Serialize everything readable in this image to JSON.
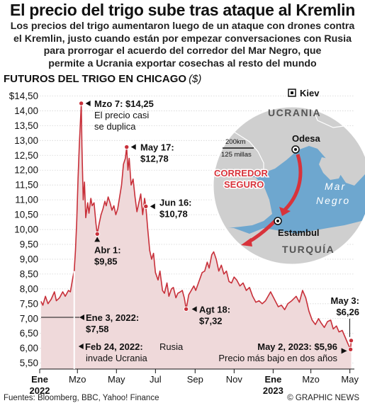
{
  "header": {
    "title": "El precio del trigo sube tras ataque al Kremlin",
    "subtitle_lines": [
      "Los precios del trigo aumentaron luego de un ataque con drones contra",
      "el Kremlin, justo cuando están por empezar conversaciones con Rusia",
      "para prorrogar el acuerdo del corredor del Mar Negro, que",
      "permite a Ucrania exportar cosechas al resto del mundo"
    ]
  },
  "chart_title": "FUTUROS DEL TRIGO EN CHICAGO",
  "chart_unit": "($)",
  "chart_data": {
    "type": "area",
    "title": "FUTUROS DEL TRIGO EN CHICAGO",
    "ylabel": "($)",
    "ylim": [
      5.3,
      14.75
    ],
    "y_ticks": [
      "$14,50",
      "14,00",
      "13,50",
      "13,00",
      "12,50",
      "12,00",
      "11,50",
      "11,00",
      "10,50",
      "10,00",
      "9,50",
      "9,00",
      "8,50",
      "8,00",
      "7,50",
      "7,00",
      "6,50",
      "6,00",
      "5,50"
    ],
    "y_tick_values": [
      14.5,
      14,
      13.5,
      13,
      12.5,
      12,
      11.5,
      11,
      10.5,
      10,
      9.5,
      9,
      8.5,
      8,
      7.5,
      7,
      6.5,
      6,
      5.5
    ],
    "x_ticks": [
      {
        "label": "Ene",
        "sub": "2022",
        "date": "2022-01-01"
      },
      {
        "label": "Mzo",
        "sub": "",
        "date": "2022-03-01"
      },
      {
        "label": "May",
        "sub": "",
        "date": "2022-05-01"
      },
      {
        "label": "Jul",
        "sub": "",
        "date": "2022-07-01"
      },
      {
        "label": "Sep",
        "sub": "",
        "date": "2022-09-01"
      },
      {
        "label": "Nov",
        "sub": "",
        "date": "2022-11-01"
      },
      {
        "label": "Ene",
        "sub": "2023",
        "date": "2023-01-01"
      },
      {
        "label": "Mzo",
        "sub": "",
        "date": "2023-03-01"
      },
      {
        "label": "May",
        "sub": "",
        "date": "2023-05-01"
      }
    ],
    "grid": true,
    "color": "#c8303a",
    "fill": "#efd9da",
    "series": [
      {
        "points": [
          [
            "2022-01-03",
            7.58
          ],
          [
            "2022-01-06",
            7.45
          ],
          [
            "2022-01-10",
            7.75
          ],
          [
            "2022-01-14",
            7.5
          ],
          [
            "2022-01-19",
            7.65
          ],
          [
            "2022-01-24",
            7.9
          ],
          [
            "2022-01-27",
            7.6
          ],
          [
            "2022-02-01",
            7.7
          ],
          [
            "2022-02-06",
            7.9
          ],
          [
            "2022-02-10",
            7.75
          ],
          [
            "2022-02-15",
            7.95
          ],
          [
            "2022-02-18",
            7.9
          ],
          [
            "2022-02-22",
            8.4
          ],
          [
            "2022-02-24",
            8.6
          ],
          [
            "2022-02-26",
            9.3
          ],
          [
            "2022-02-28",
            10.3
          ],
          [
            "2022-03-02",
            11.7
          ],
          [
            "2022-03-04",
            12.9
          ],
          [
            "2022-03-07",
            14.25
          ],
          [
            "2022-03-08",
            12.8
          ],
          [
            "2022-03-10",
            11.0
          ],
          [
            "2022-03-12",
            11.6
          ],
          [
            "2022-03-14",
            10.4
          ],
          [
            "2022-03-17",
            10.9
          ],
          [
            "2022-03-19",
            10.55
          ],
          [
            "2022-03-22",
            11.05
          ],
          [
            "2022-03-24",
            10.8
          ],
          [
            "2022-03-27",
            10.9
          ],
          [
            "2022-03-30",
            10.2
          ],
          [
            "2022-04-01",
            9.85
          ],
          [
            "2022-04-04",
            10.2
          ],
          [
            "2022-04-07",
            10.5
          ],
          [
            "2022-04-10",
            10.7
          ],
          [
            "2022-04-13",
            10.95
          ],
          [
            "2022-04-15",
            10.8
          ],
          [
            "2022-04-18",
            11.1
          ],
          [
            "2022-04-21",
            10.9
          ],
          [
            "2022-04-24",
            10.65
          ],
          [
            "2022-04-27",
            10.8
          ],
          [
            "2022-04-30",
            10.5
          ],
          [
            "2022-05-03",
            10.7
          ],
          [
            "2022-05-06",
            11.1
          ],
          [
            "2022-05-09",
            11.5
          ],
          [
            "2022-05-12",
            12.2
          ],
          [
            "2022-05-15",
            12.4
          ],
          [
            "2022-05-17",
            12.78
          ],
          [
            "2022-05-19",
            12.0
          ],
          [
            "2022-05-21",
            12.4
          ],
          [
            "2022-05-24",
            11.5
          ],
          [
            "2022-05-27",
            11.7
          ],
          [
            "2022-05-30",
            11.1
          ],
          [
            "2022-06-02",
            10.6
          ],
          [
            "2022-06-05",
            10.9
          ],
          [
            "2022-06-08",
            11.2
          ],
          [
            "2022-06-11",
            10.5
          ],
          [
            "2022-06-14",
            11.05
          ],
          [
            "2022-06-16",
            10.78
          ],
          [
            "2022-06-19",
            10.0
          ],
          [
            "2022-06-22",
            9.3
          ],
          [
            "2022-06-25",
            9.0
          ],
          [
            "2022-06-28",
            9.2
          ],
          [
            "2022-07-01",
            8.55
          ],
          [
            "2022-07-05",
            8.3
          ],
          [
            "2022-07-08",
            8.6
          ],
          [
            "2022-07-12",
            7.95
          ],
          [
            "2022-07-15",
            7.85
          ],
          [
            "2022-07-19",
            8.2
          ],
          [
            "2022-07-22",
            7.75
          ],
          [
            "2022-07-26",
            8.0
          ],
          [
            "2022-07-29",
            8.05
          ],
          [
            "2022-08-02",
            7.7
          ],
          [
            "2022-08-05",
            7.85
          ],
          [
            "2022-08-09",
            7.9
          ],
          [
            "2022-08-12",
            7.95
          ],
          [
            "2022-08-15",
            7.7
          ],
          [
            "2022-08-18",
            7.32
          ],
          [
            "2022-08-22",
            7.8
          ],
          [
            "2022-08-26",
            7.95
          ],
          [
            "2022-08-30",
            8.1
          ],
          [
            "2022-09-02",
            7.95
          ],
          [
            "2022-09-07",
            8.25
          ],
          [
            "2022-09-12",
            8.55
          ],
          [
            "2022-09-16",
            8.6
          ],
          [
            "2022-09-20",
            8.9
          ],
          [
            "2022-09-23",
            8.7
          ],
          [
            "2022-09-27",
            9.15
          ],
          [
            "2022-09-30",
            9.25
          ],
          [
            "2022-10-04",
            9.0
          ],
          [
            "2022-10-08",
            8.6
          ],
          [
            "2022-10-12",
            8.8
          ],
          [
            "2022-10-16",
            8.5
          ],
          [
            "2022-10-20",
            8.6
          ],
          [
            "2022-10-24",
            8.25
          ],
          [
            "2022-10-28",
            8.2
          ],
          [
            "2022-11-01",
            8.4
          ],
          [
            "2022-11-05",
            8.3
          ],
          [
            "2022-11-10",
            8.1
          ],
          [
            "2022-11-15",
            8.2
          ],
          [
            "2022-11-20",
            7.95
          ],
          [
            "2022-11-25",
            8.05
          ],
          [
            "2022-11-30",
            7.75
          ],
          [
            "2022-12-05",
            7.55
          ],
          [
            "2022-12-10",
            7.6
          ],
          [
            "2022-12-15",
            7.5
          ],
          [
            "2022-12-20",
            7.6
          ],
          [
            "2022-12-28",
            7.9
          ],
          [
            "2023-01-03",
            7.65
          ],
          [
            "2023-01-09",
            7.4
          ],
          [
            "2023-01-14",
            7.45
          ],
          [
            "2023-01-19",
            7.3
          ],
          [
            "2023-01-24",
            7.5
          ],
          [
            "2023-01-30",
            7.6
          ],
          [
            "2023-02-06",
            7.75
          ],
          [
            "2023-02-11",
            7.55
          ],
          [
            "2023-02-16",
            7.95
          ],
          [
            "2023-02-21",
            7.7
          ],
          [
            "2023-02-26",
            7.25
          ],
          [
            "2023-03-03",
            6.95
          ],
          [
            "2023-03-08",
            6.8
          ],
          [
            "2023-03-13",
            7.0
          ],
          [
            "2023-03-17",
            6.85
          ],
          [
            "2023-03-22",
            6.7
          ],
          [
            "2023-03-27",
            6.9
          ],
          [
            "2023-04-01",
            6.95
          ],
          [
            "2023-04-05",
            6.65
          ],
          [
            "2023-04-10",
            6.75
          ],
          [
            "2023-04-14",
            6.55
          ],
          [
            "2023-04-19",
            6.6
          ],
          [
            "2023-04-24",
            6.35
          ],
          [
            "2023-04-28",
            6.15
          ],
          [
            "2023-05-02",
            5.96
          ],
          [
            "2023-05-03",
            6.26
          ]
        ]
      }
    ],
    "annotations": [
      {
        "key": "mzo7",
        "date": "2022-03-07",
        "value": 14.25,
        "bold": "Mzo 7: $14,25",
        "text": [
          "El precio casi",
          "se duplica"
        ]
      },
      {
        "key": "may17",
        "date": "2022-05-17",
        "value": 12.78,
        "bold": "May 17:",
        "bold2": "$12,78"
      },
      {
        "key": "jun16",
        "date": "2022-06-16",
        "value": 10.78,
        "bold": "Jun 16:",
        "bold2": "$10,78"
      },
      {
        "key": "abr1",
        "date": "2022-04-01",
        "value": 9.85,
        "bold": "Abr 1:",
        "bold2": "$9,85"
      },
      {
        "key": "agt18",
        "date": "2022-08-18",
        "value": 7.32,
        "bold": "Agt 18:",
        "bold2": "$7,32"
      },
      {
        "key": "ene3",
        "date": "2022-01-03",
        "value": 7.58,
        "bold": "Ene 3, 2022:",
        "bold2": "$7,58"
      },
      {
        "key": "feb24",
        "date": "2022-02-24",
        "value": 8.6,
        "bold": "Feb 24, 2022:",
        "text_inline": "Rusia",
        "text": [
          "invade Ucrania"
        ]
      },
      {
        "key": "may3",
        "date": "2023-05-03",
        "value": 6.26,
        "bold": "May 3:",
        "bold2": "$6,26"
      },
      {
        "key": "may2",
        "date": "2023-05-02",
        "value": 5.96,
        "bold": "May 2, 2023: $5,96",
        "text": [
          "Precio más bajo en dos años"
        ]
      }
    ]
  },
  "map": {
    "kiev": "Kiev",
    "ucrania": "UCRANIA",
    "odesa": "Odesa",
    "mar_negro": [
      "Mar",
      "Negro"
    ],
    "corredor": [
      "CORREDOR",
      "SEGURO"
    ],
    "estambul": "Estambul",
    "turquia": "TURQUÍA",
    "scale_km": "200km",
    "scale_mi": "125 millas"
  },
  "footer": {
    "sources": "Fuentes: Bloomberg, BBC, Yahoo! Finance",
    "brand": "© GRAPHIC NEWS"
  },
  "colors": {
    "line": "#c8303a",
    "area": "#efd9da",
    "sea": "#6ea7cf",
    "land": "#cfcfcf",
    "corridor": "#d8333b"
  }
}
